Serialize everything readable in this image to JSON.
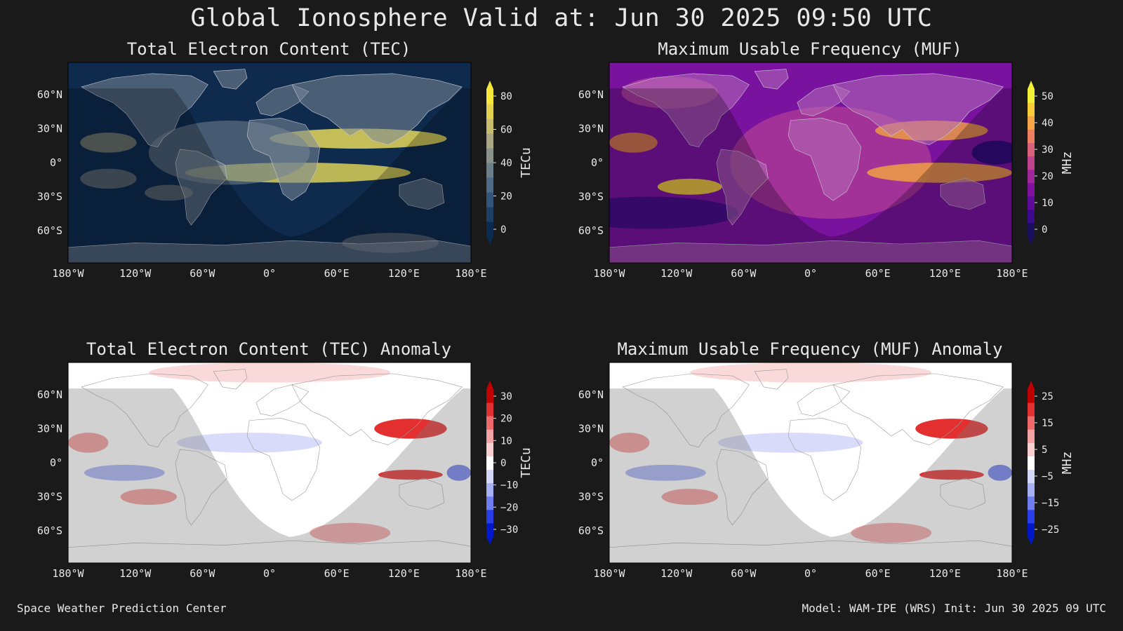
{
  "title": "Global Ionosphere Valid at: Jun 30 2025 09:50 UTC",
  "panels": [
    {
      "title": "Total Electron Content (TEC)",
      "kind": "tec",
      "colorbar": {
        "unit": "TECu",
        "ticks": [
          "80",
          "60",
          "40",
          "20",
          "0"
        ],
        "colors": [
          "#0b2a50",
          "#1d3f66",
          "#33557a",
          "#4d6a86",
          "#6a7f8a",
          "#8a938a",
          "#a9a784",
          "#c8bd6e",
          "#e2d24f",
          "#f5e83a"
        ]
      }
    },
    {
      "title": "Maximum Usable Frequency (MUF)",
      "kind": "muf",
      "colorbar": {
        "unit": "MHz",
        "ticks": [
          "50",
          "40",
          "30",
          "20",
          "10",
          "0"
        ],
        "colors": [
          "#1a0f5c",
          "#3a0a8a",
          "#5e0a9a",
          "#80129e",
          "#a0279a",
          "#c04390",
          "#d9617a",
          "#ec8060",
          "#f6a546",
          "#f9cd3a",
          "#f4f03a"
        ]
      }
    },
    {
      "title": "Total Electron Content (TEC) Anomaly",
      "kind": "anom",
      "colorbar": {
        "unit": "TECu",
        "ticks": [
          "30",
          "20",
          "10",
          "0",
          "−10",
          "−20",
          "−30"
        ],
        "colors": [
          "#0018c8",
          "#2a3ee8",
          "#6e7ef0",
          "#a8b0f4",
          "#d4d8f8",
          "#ffffff",
          "#f8d0d0",
          "#f4a4a4",
          "#ee6a6a",
          "#e03030",
          "#c00000"
        ]
      }
    },
    {
      "title": "Maximum Usable Frequency (MUF) Anomaly",
      "kind": "anom",
      "colorbar": {
        "unit": "MHz",
        "ticks": [
          "25",
          "15",
          "5",
          "−5",
          "−15",
          "−25"
        ],
        "colors": [
          "#0018c8",
          "#2a3ee8",
          "#6e7ef0",
          "#a8b0f4",
          "#d4d8f8",
          "#ffffff",
          "#f8d0d0",
          "#f4a4a4",
          "#ee6a6a",
          "#e03030",
          "#c00000"
        ]
      }
    }
  ],
  "axes": {
    "lat_ticks": [
      "60°N",
      "30°N",
      "0°",
      "30°S",
      "60°S"
    ],
    "lon_ticks": [
      "180°W",
      "120°W",
      "60°W",
      "0°",
      "60°E",
      "120°E",
      "180°E"
    ]
  },
  "footer": {
    "left": "Space Weather Prediction Center",
    "right": "Model: WAM-IPE (WRS) Init: Jun 30 2025 09 UTC"
  }
}
